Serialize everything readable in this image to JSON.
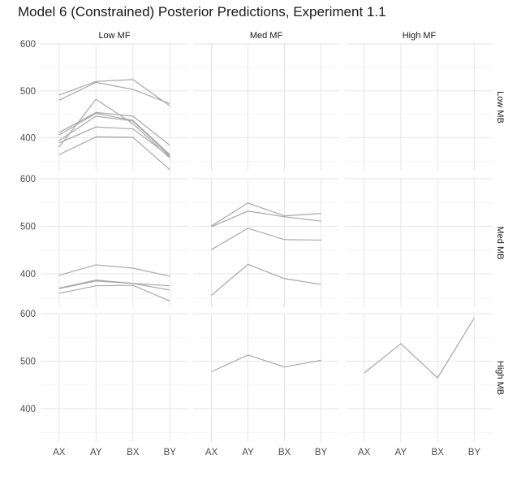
{
  "chart_data": {
    "type": "line",
    "title": "Model 6 (Constrained) Posterior Predictions, Experiment 1.1",
    "categories": [
      "AX",
      "AY",
      "BX",
      "BY"
    ],
    "facet_cols": [
      "Low MF",
      "Med MF",
      "High MF"
    ],
    "facet_rows": [
      "Low MB",
      "Med MB",
      "High MB"
    ],
    "ylim": [
      330,
      600
    ],
    "yticks": [
      400,
      500,
      600
    ],
    "grid": true,
    "panels": [
      {
        "row": 0,
        "col": 0,
        "series": [
          {
            "values": [
              491,
              520,
              524,
              468
            ]
          },
          {
            "values": [
              480,
              518,
              503,
              473
            ]
          },
          {
            "values": [
              411,
              454,
              446,
              384
            ]
          },
          {
            "values": [
              406,
              452,
              437,
              364
            ]
          },
          {
            "values": [
              380,
              482,
              430,
              357
            ]
          },
          {
            "values": [
              394,
              446,
              436,
              361
            ]
          },
          {
            "values": [
              389,
              423,
              419,
              360
            ]
          },
          {
            "values": [
              364,
              402,
              401,
              332
            ]
          }
        ]
      },
      {
        "row": 0,
        "col": 1,
        "series": []
      },
      {
        "row": 0,
        "col": 2,
        "series": []
      },
      {
        "row": 1,
        "col": 0,
        "series": [
          {
            "values": [
              397,
              419,
              412,
              395
            ]
          },
          {
            "values": [
              370,
              387,
              380,
              375
            ]
          },
          {
            "values": [
              369,
              385,
              380,
              366
            ]
          },
          {
            "values": [
              359,
              375,
              376,
              343
            ]
          }
        ]
      },
      {
        "row": 1,
        "col": 1,
        "series": [
          {
            "values": [
              501,
              549,
              522,
              527
            ]
          },
          {
            "values": [
              499,
              532,
              520,
              511
            ]
          },
          {
            "values": [
              451,
              496,
              472,
              471
            ]
          },
          {
            "values": [
              355,
              420,
              390,
              378
            ]
          }
        ]
      },
      {
        "row": 1,
        "col": 2,
        "series": []
      },
      {
        "row": 2,
        "col": 0,
        "series": []
      },
      {
        "row": 2,
        "col": 1,
        "series": [
          {
            "values": [
              478,
              513,
              488,
              502
            ]
          }
        ]
      },
      {
        "row": 2,
        "col": 2,
        "series": [
          {
            "values": [
              475,
              537,
              465,
              591
            ]
          }
        ]
      }
    ]
  }
}
